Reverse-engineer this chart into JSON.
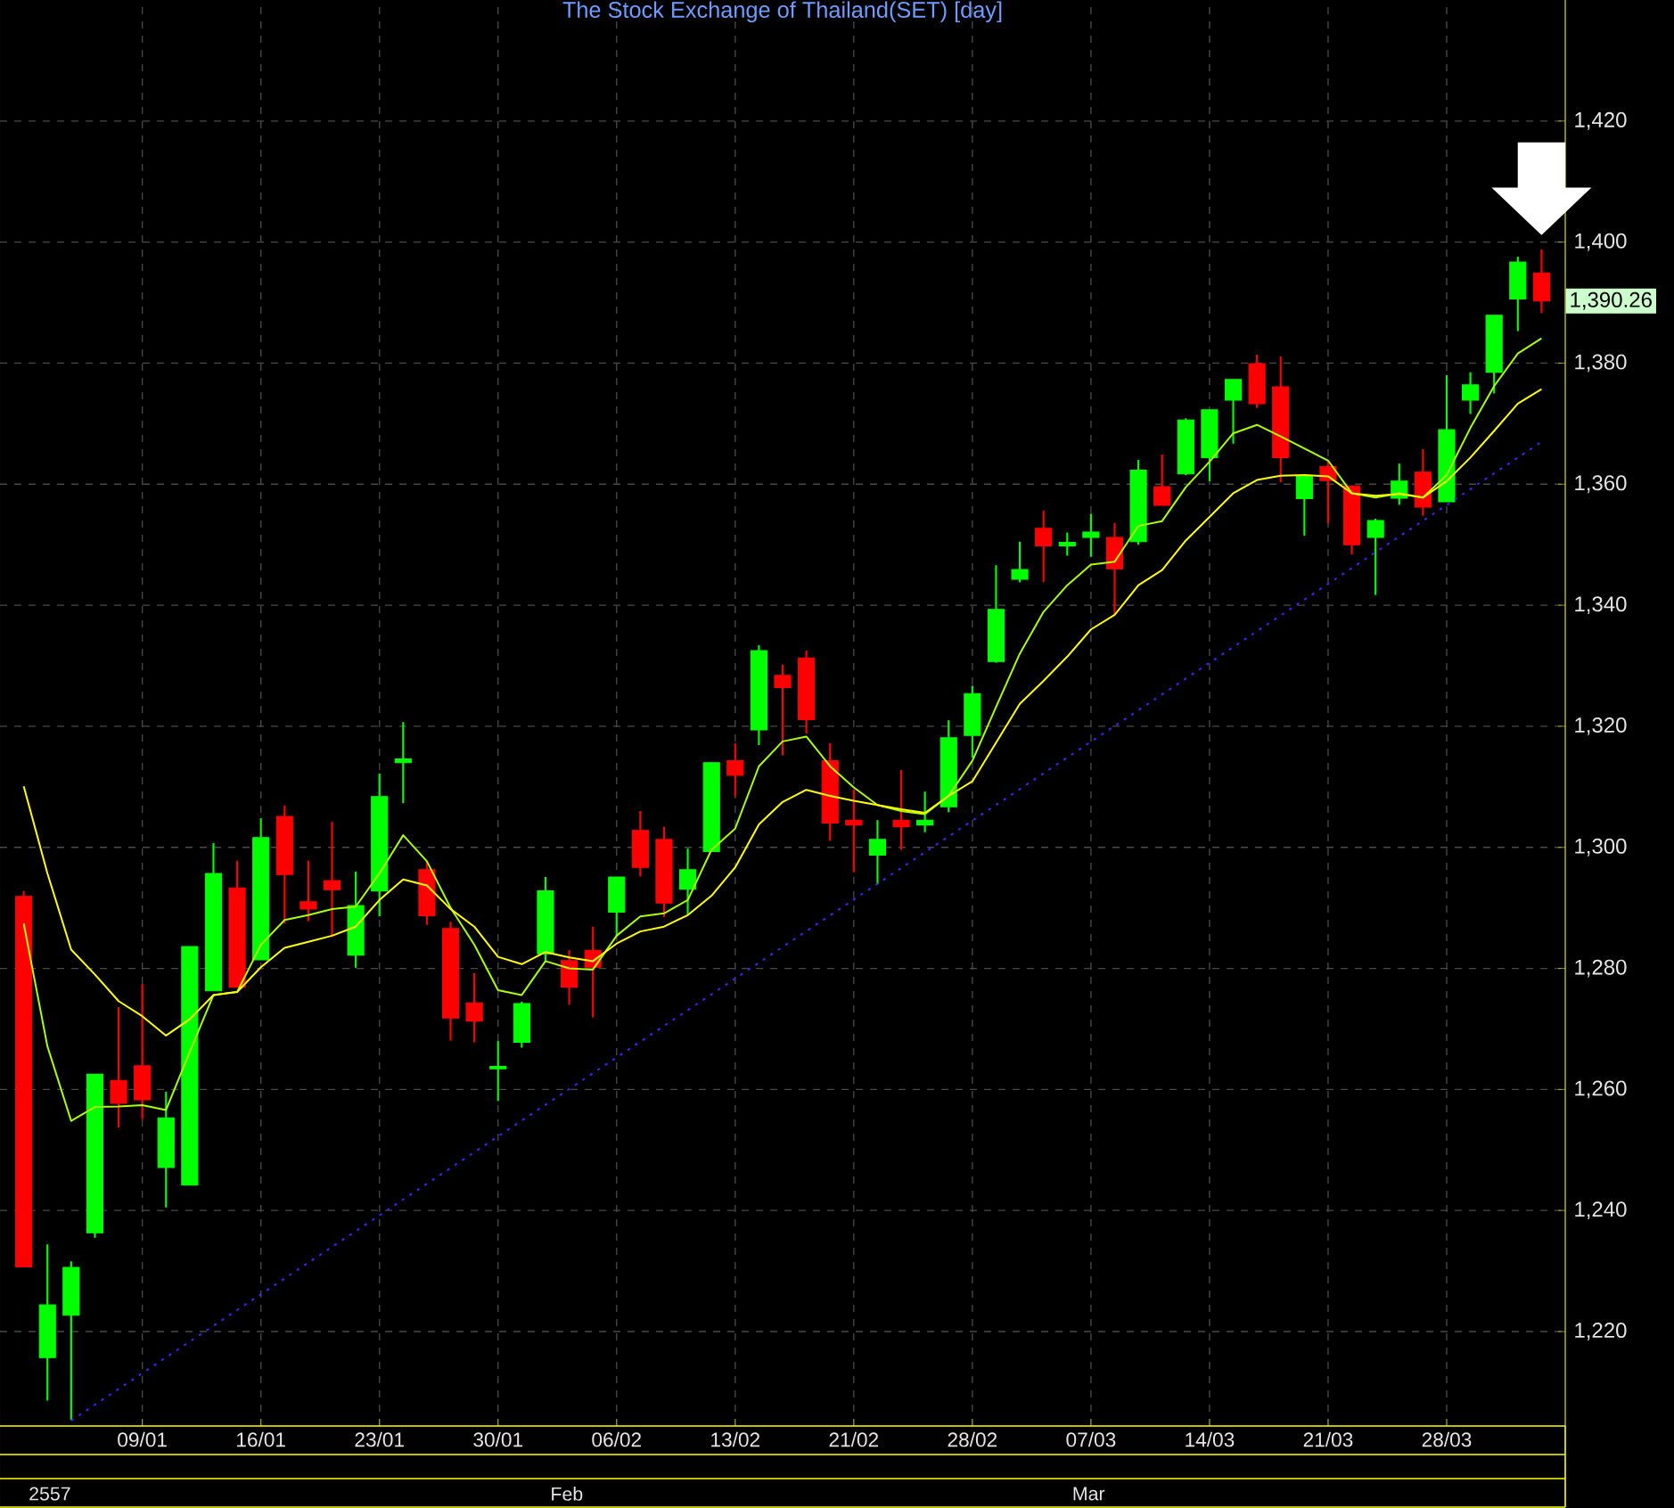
{
  "chart_data": {
    "type": "candlestick",
    "title": "The Stock Exchange of Thailand(SET) [day]",
    "categories": [
      null,
      null,
      null,
      null,
      null,
      "09/01",
      null,
      null,
      null,
      null,
      "16/01",
      null,
      null,
      null,
      null,
      "23/01",
      null,
      null,
      null,
      null,
      "30/01",
      null,
      null,
      null,
      null,
      "06/02",
      null,
      null,
      null,
      null,
      "13/02",
      null,
      null,
      null,
      null,
      "21/02",
      null,
      null,
      null,
      null,
      "28/02",
      null,
      null,
      null,
      null,
      "07/03",
      null,
      null,
      null,
      null,
      "14/03",
      null,
      null,
      null,
      null,
      "21/03",
      null,
      null,
      null,
      null,
      "28/03",
      null,
      null,
      null,
      null
    ],
    "ohlc": [
      [
        1291.9,
        1292.8,
        1230.6,
        1230.7
      ],
      [
        1215.7,
        1234.4,
        1208.6,
        1224.4
      ],
      [
        1222.7,
        1231.6,
        1205.4,
        1230.6
      ],
      [
        1236.3,
        1262.5,
        1235.5,
        1262.5
      ],
      [
        1261.5,
        1273.6,
        1253.7,
        1257.7
      ],
      [
        1263.9,
        1277.4,
        1255.1,
        1258.3
      ],
      [
        1247.1,
        1259.6,
        1240.5,
        1255.3
      ],
      [
        1244.2,
        1283.6,
        1244.2,
        1283.6
      ],
      [
        1276.3,
        1300.7,
        1276.3,
        1295.7
      ],
      [
        1293.3,
        1297.8,
        1276.9,
        1276.9
      ],
      [
        1281.4,
        1304.8,
        1281.4,
        1301.6
      ],
      [
        1305.1,
        1306.9,
        1287.4,
        1295.5
      ],
      [
        1291.0,
        1297.8,
        1287.8,
        1289.8
      ],
      [
        1294.5,
        1304.2,
        1285.2,
        1293.0
      ],
      [
        1282.2,
        1296.0,
        1280.1,
        1290.4
      ],
      [
        1292.8,
        1312.2,
        1288.6,
        1308.4
      ],
      [
        1314.0,
        1320.7,
        1307.3,
        1314.6
      ],
      [
        1296.3,
        1297.8,
        1287.2,
        1288.7
      ],
      [
        1286.6,
        1287.7,
        1268.1,
        1271.8
      ],
      [
        1274.3,
        1279.2,
        1267.8,
        1271.3
      ],
      [
        1263.4,
        1268.0,
        1258.1,
        1263.8
      ],
      [
        1267.8,
        1274.5,
        1266.9,
        1274.2
      ],
      [
        1282.4,
        1295.1,
        1281.0,
        1292.8
      ],
      [
        1281.3,
        1283.0,
        1274.0,
        1276.9
      ],
      [
        1283.0,
        1286.9,
        1271.9,
        1280.2
      ],
      [
        1289.3,
        1295.1,
        1285.4,
        1295.1
      ],
      [
        1302.8,
        1306.0,
        1295.2,
        1296.7
      ],
      [
        1301.3,
        1303.4,
        1288.5,
        1290.8
      ],
      [
        1293.1,
        1299.8,
        1288.8,
        1296.3
      ],
      [
        1299.3,
        1314.0,
        1299.3,
        1314.0
      ],
      [
        1314.3,
        1317.2,
        1308.4,
        1311.9
      ],
      [
        1319.4,
        1333.4,
        1316.9,
        1332.5
      ],
      [
        1328.4,
        1330.2,
        1315.2,
        1326.4
      ],
      [
        1331.3,
        1332.5,
        1318.8,
        1321.1
      ],
      [
        1314.3,
        1317.2,
        1301.1,
        1304.0
      ],
      [
        1304.5,
        1309.6,
        1295.9,
        1303.7
      ],
      [
        1298.7,
        1304.5,
        1293.9,
        1301.3
      ],
      [
        1304.5,
        1312.8,
        1299.6,
        1303.4
      ],
      [
        1303.7,
        1309.2,
        1302.5,
        1304.5
      ],
      [
        1306.7,
        1321.0,
        1305.8,
        1318.1
      ],
      [
        1318.5,
        1326.7,
        1314.8,
        1325.4
      ],
      [
        1330.7,
        1346.6,
        1330.5,
        1339.3
      ],
      [
        1344.3,
        1350.5,
        1343.8,
        1345.9
      ],
      [
        1352.7,
        1355.6,
        1343.8,
        1349.8
      ],
      [
        1349.8,
        1352.0,
        1348.2,
        1350.4
      ],
      [
        1351.2,
        1355.1,
        1348.0,
        1352.1
      ],
      [
        1351.2,
        1353.6,
        1338.4,
        1346.0
      ],
      [
        1350.5,
        1364.0,
        1350.0,
        1362.3
      ],
      [
        1359.6,
        1364.9,
        1356.5,
        1356.5
      ],
      [
        1361.7,
        1370.9,
        1361.5,
        1370.6
      ],
      [
        1364.4,
        1372.3,
        1360.5,
        1372.3
      ],
      [
        1373.9,
        1377.3,
        1366.7,
        1377.3
      ],
      [
        1379.9,
        1381.4,
        1372.6,
        1373.3
      ],
      [
        1376.1,
        1381.1,
        1360.3,
        1364.4
      ],
      [
        1357.6,
        1361.3,
        1351.5,
        1361.3
      ],
      [
        1362.9,
        1363.9,
        1353.5,
        1360.6
      ],
      [
        1359.7,
        1359.7,
        1348.4,
        1350.0
      ],
      [
        1351.2,
        1354.3,
        1341.7,
        1354.0
      ],
      [
        1357.7,
        1363.4,
        1356.6,
        1360.5
      ],
      [
        1362.0,
        1365.8,
        1354.8,
        1356.2
      ],
      [
        1357.1,
        1378.0,
        1357.1,
        1369.0
      ],
      [
        1373.9,
        1378.5,
        1371.6,
        1376.4
      ],
      [
        1378.5,
        1387.9,
        1375.0,
        1387.9
      ],
      [
        1390.6,
        1397.6,
        1385.3,
        1396.7
      ],
      [
        1394.9,
        1398.8,
        1388.3,
        1390.26
      ]
    ],
    "colors": [
      "#ff0000",
      "#00ff00",
      "#00ff00",
      "#00ff00",
      "#ff0000",
      "#ff0000",
      "#00ff00",
      "#00ff00",
      "#00ff00",
      "#ff0000",
      "#00ff00",
      "#ff0000",
      "#ff0000",
      "#ff0000",
      "#00ff00",
      "#00ff00",
      "#00ff00",
      "#ff0000",
      "#ff0000",
      "#ff0000",
      "#00ff00",
      "#00ff00",
      "#00ff00",
      "#ff0000",
      "#ff0000",
      "#00ff00",
      "#ff0000",
      "#ff0000",
      "#00ff00",
      "#00ff00",
      "#ff0000",
      "#00ff00",
      "#ff0000",
      "#ff0000",
      "#ff0000",
      "#ff0000",
      "#00ff00",
      "#ff0000",
      "#00ff00",
      "#00ff00",
      "#00ff00",
      "#00ff00",
      "#00ff00",
      "#ff0000",
      "#00ff00",
      "#00ff00",
      "#ff0000",
      "#00ff00",
      "#ff0000",
      "#00ff00",
      "#00ff00",
      "#00ff00",
      "#ff0000",
      "#ff0000",
      "#00ff00",
      "#ff0000",
      "#ff0000",
      "#00ff00",
      "#00ff00",
      "#ff0000",
      "#00ff00",
      "#00ff00",
      "#00ff00",
      "#00ff00",
      "#ff0000"
    ],
    "series": [
      {
        "type": "line",
        "color": "#aaff00",
        "values": [
          1287.4,
          1267.1,
          1254.8,
          1257.1,
          1257.2,
          1257.4,
          1256.6,
          1266.2,
          1275.6,
          1276.1,
          1283.9,
          1288.0,
          1288.8,
          1289.8,
          1290.2,
          1295.7,
          1302.0,
          1297.7,
          1290.0,
          1283.9,
          1276.4,
          1275.6,
          1281.2,
          1280.0,
          1279.8,
          1285.4,
          1288.6,
          1289.1,
          1291.3,
          1299.6,
          1303.1,
          1313.4,
          1317.5,
          1318.3,
          1313.4,
          1309.9,
          1307.0,
          1306.0,
          1305.5,
          1308.5,
          1314.3,
          1323.2,
          1332.0,
          1338.9,
          1343.3,
          1346.7,
          1347.2,
          1353.1,
          1353.9,
          1359.5,
          1363.7,
          1368.4,
          1369.8,
          1367.9,
          1365.9,
          1363.9,
          1358.5,
          1357.8,
          1358.5,
          1357.8,
          1361.5,
          1369.3,
          1376.2,
          1381.6,
          1384.1
        ]
      },
      {
        "type": "line",
        "color": "#ffff00",
        "values": [
          1310.1,
          1295.7,
          1283.1,
          1279.0,
          1274.6,
          1272.1,
          1268.9,
          1271.6,
          1275.6,
          1276.1,
          1280.2,
          1283.4,
          1284.4,
          1285.4,
          1286.9,
          1291.3,
          1294.7,
          1293.7,
          1289.8,
          1286.9,
          1281.9,
          1280.7,
          1282.7,
          1281.8,
          1281.2,
          1284.1,
          1286.1,
          1286.9,
          1288.8,
          1292.0,
          1296.7,
          1303.8,
          1307.5,
          1309.5,
          1308.5,
          1307.7,
          1307.0,
          1306.3,
          1305.7,
          1308.5,
          1310.9,
          1317.3,
          1323.7,
          1327.5,
          1331.5,
          1336.0,
          1338.4,
          1343.3,
          1345.8,
          1350.7,
          1354.6,
          1358.5,
          1360.7,
          1361.4,
          1361.5,
          1361.3,
          1358.5,
          1358.1,
          1358.4,
          1357.8,
          1360.5,
          1364.4,
          1368.8,
          1373.3,
          1375.7
        ]
      },
      {
        "type": "line",
        "color": "#4422ff",
        "line_style": "dotted",
        "values": [
          null,
          null,
          1205.3,
          null,
          null,
          null,
          null,
          null,
          null,
          null,
          null,
          null,
          null,
          null,
          null,
          null,
          null,
          null,
          null,
          null,
          null,
          null,
          null,
          null,
          null,
          null,
          null,
          null,
          null,
          null,
          null,
          null,
          null,
          null,
          null,
          null,
          null,
          null,
          null,
          null,
          null,
          null,
          null,
          null,
          null,
          null,
          null,
          null,
          null,
          null,
          null,
          null,
          null,
          null,
          null,
          null,
          null,
          null,
          null,
          null,
          null,
          null,
          null,
          null,
          1367.0
        ]
      }
    ],
    "ylim": [
      1204.4,
      1440
    ],
    "yticks": [
      {
        "value": 1220,
        "label": "1,220"
      },
      {
        "value": 1240,
        "label": "1,240"
      },
      {
        "value": 1260,
        "label": "1,260"
      },
      {
        "value": 1280,
        "label": "1,280"
      },
      {
        "value": 1300,
        "label": "1,300"
      },
      {
        "value": 1320,
        "label": "1,320"
      },
      {
        "value": 1340,
        "label": "1,340"
      },
      {
        "value": 1360,
        "label": "1,360"
      },
      {
        "value": 1380,
        "label": "1,380"
      },
      {
        "value": 1400,
        "label": "1,400"
      },
      {
        "value": 1420,
        "label": "1,420"
      }
    ],
    "grid": true,
    "annotations": [
      "2557",
      "Feb",
      "Mar",
      "1,390.26"
    ]
  }
}
